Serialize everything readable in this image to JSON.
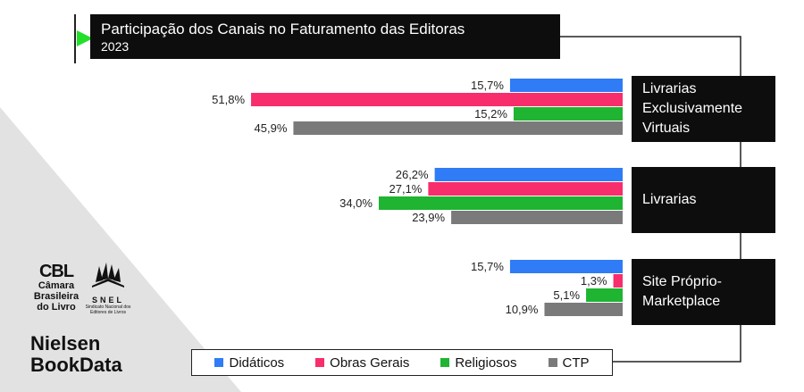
{
  "title": "Participação dos Canais no Faturamento das Editoras",
  "subtitle": "2023",
  "colors": {
    "Didáticos": "#2f7cf6",
    "Obras Gerais": "#f72d6c",
    "Religiosos": "#1fb431",
    "CTP": "#7a7a7a",
    "accent": "#22e02a"
  },
  "chart_data": {
    "type": "bar",
    "orientation": "horizontal",
    "categories": [
      "Livrarias\nExclusivamente\nVirtuais",
      "Livrarias",
      "Site Próprio-\nMarketplace"
    ],
    "series": [
      {
        "name": "Didáticos",
        "values": [
          15.7,
          26.2,
          15.7
        ],
        "labels": [
          "15,7%",
          "26,2%",
          "15,7%"
        ]
      },
      {
        "name": "Obras Gerais",
        "values": [
          51.8,
          27.1,
          1.3
        ],
        "labels": [
          "51,8%",
          "27,1%",
          "1,3%"
        ]
      },
      {
        "name": "Religiosos",
        "values": [
          15.2,
          34.0,
          5.1
        ],
        "labels": [
          "15,2%",
          "34,0%",
          "5,1%"
        ]
      },
      {
        "name": "CTP",
        "values": [
          45.9,
          23.9,
          10.9
        ],
        "labels": [
          "45,9%",
          "23,9%",
          "10,9%"
        ]
      }
    ],
    "legend_position": "bottom",
    "grid": false
  },
  "logos": {
    "cbl_mark": "CBL",
    "cbl_name": "Câmara\nBrasileira\ndo Livro",
    "snel_abbr": "SNEL",
    "snel_name": "Sindicato Nacional dos Editores de Livros",
    "nielsen": "Nielsen\nBookData"
  }
}
